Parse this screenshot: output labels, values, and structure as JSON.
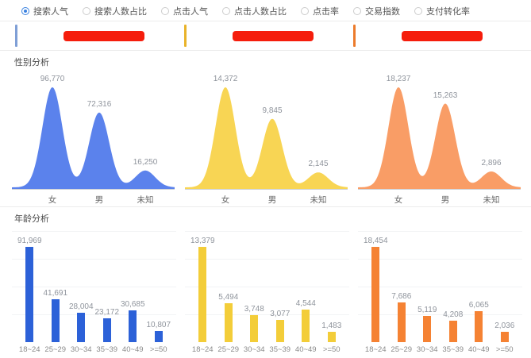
{
  "metrics": {
    "options": [
      {
        "label": "搜索人气",
        "selected": true
      },
      {
        "label": "搜索人数占比",
        "selected": false
      },
      {
        "label": "点击人气",
        "selected": false
      },
      {
        "label": "点击人数占比",
        "selected": false
      },
      {
        "label": "点击率",
        "selected": false
      },
      {
        "label": "交易指数",
        "selected": false
      },
      {
        "label": "支付转化率",
        "selected": false
      }
    ]
  },
  "legend": {
    "redaction_color": "#f51d0c",
    "items": [
      {
        "accent_color": "#7f9fd6",
        "name_redacted": true
      },
      {
        "accent_color": "#e9b32a",
        "name_redacted": true
      },
      {
        "accent_color": "#ec7b2c",
        "name_redacted": true
      }
    ]
  },
  "sections": {
    "gender": {
      "title": "性别分析"
    },
    "age": {
      "title": "年龄分析"
    }
  },
  "chart_data": [
    {
      "type": "area",
      "group": "gender",
      "product_index": 1,
      "series_color": "#5b82ec",
      "categories": [
        "女",
        "男",
        "未知"
      ],
      "values": [
        96770,
        72316,
        16250
      ],
      "labels": [
        "96,770",
        "72,316",
        "16,250"
      ],
      "title": "性别分析",
      "xlabel": "",
      "ylabel": ""
    },
    {
      "type": "area",
      "group": "gender",
      "product_index": 2,
      "series_color": "#f8d554",
      "categories": [
        "女",
        "男",
        "未知"
      ],
      "values": [
        14372,
        9845,
        2145
      ],
      "labels": [
        "14,372",
        "9,845",
        "2,145"
      ],
      "title": "性别分析",
      "xlabel": "",
      "ylabel": ""
    },
    {
      "type": "area",
      "group": "gender",
      "product_index": 3,
      "series_color": "#f99d66",
      "categories": [
        "女",
        "男",
        "未知"
      ],
      "values": [
        18237,
        15263,
        2896
      ],
      "labels": [
        "18,237",
        "15,263",
        "2,896"
      ],
      "title": "性别分析",
      "xlabel": "",
      "ylabel": ""
    },
    {
      "type": "bar",
      "group": "age",
      "product_index": 1,
      "series_color": "#2c61d8",
      "categories": [
        "18~24",
        "25~29",
        "30~34",
        "35~39",
        "40~49",
        ">=50"
      ],
      "values": [
        91969,
        41691,
        28004,
        23172,
        30685,
        10807
      ],
      "labels": [
        "91,969",
        "41,691",
        "28,004",
        "23,172",
        "30,685",
        "10,807"
      ],
      "title": "年龄分析",
      "xlabel": "",
      "ylabel": ""
    },
    {
      "type": "bar",
      "group": "age",
      "product_index": 2,
      "series_color": "#f3cd39",
      "categories": [
        "18~24",
        "25~29",
        "30~34",
        "35~39",
        "40~49",
        ">=50"
      ],
      "values": [
        13379,
        5494,
        3748,
        3077,
        4544,
        1483
      ],
      "labels": [
        "13,379",
        "5,494",
        "3,748",
        "3,077",
        "4,544",
        "1,483"
      ],
      "title": "年龄分析",
      "xlabel": "",
      "ylabel": ""
    },
    {
      "type": "bar",
      "group": "age",
      "product_index": 3,
      "series_color": "#f58233",
      "categories": [
        "18~24",
        "25~29",
        "30~34",
        "35~39",
        "40~49",
        ">=50"
      ],
      "values": [
        18454,
        7686,
        5119,
        4208,
        6065,
        2036
      ],
      "labels": [
        "18,454",
        "7,686",
        "5,119",
        "4,208",
        "6,065",
        "2,036"
      ],
      "title": "年龄分析",
      "xlabel": "",
      "ylabel": ""
    }
  ]
}
